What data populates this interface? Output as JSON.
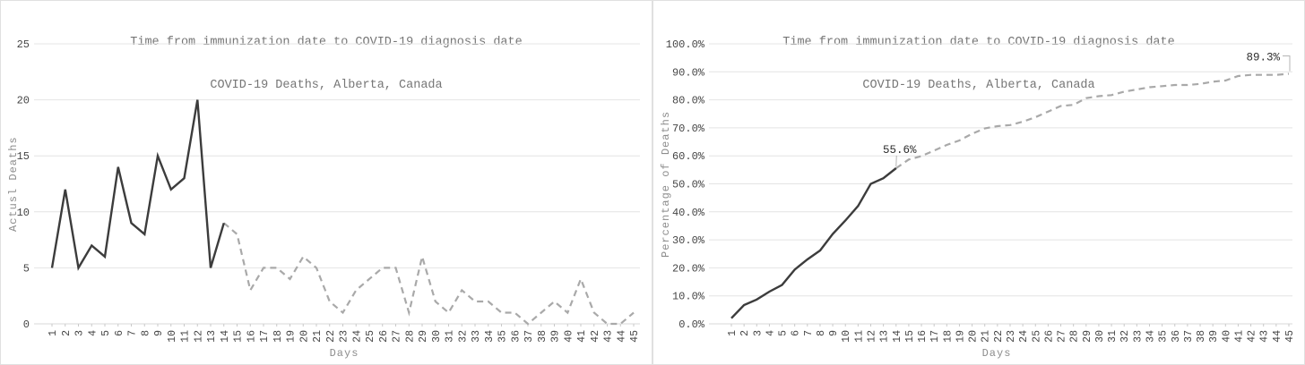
{
  "page": {
    "background": "#ffffff",
    "panel_border": "#e0e0e0"
  },
  "colors": {
    "grid": "#e4e4e4",
    "axis": "#d9d9d9",
    "tick_mark": "#c9c9c9",
    "tick_label": "#454545",
    "title": "#767676",
    "axis_label": "#8c8c8c",
    "solid_line": "#3c3c3c",
    "dashed_line": "#a9a9a9",
    "annotation_text": "#2e2e2e",
    "annotation_leader": "#b5b5b5"
  },
  "chart_data": [
    {
      "type": "line",
      "title_line1": "Time from immunization date to COVID-19 diagnosis date",
      "title_line2": "COVID-19 Deaths, Alberta, Canada",
      "xlabel": "Days",
      "ylabel": "Actusl Deaths",
      "x": [
        1,
        2,
        3,
        4,
        5,
        6,
        7,
        8,
        9,
        10,
        11,
        12,
        13,
        14,
        15,
        16,
        17,
        18,
        19,
        20,
        21,
        22,
        23,
        24,
        25,
        26,
        27,
        28,
        29,
        30,
        31,
        32,
        33,
        34,
        35,
        36,
        37,
        38,
        39,
        40,
        41,
        42,
        43,
        44,
        45
      ],
      "values": [
        5,
        12,
        5,
        7,
        6,
        14,
        9,
        8,
        15,
        12,
        13,
        20,
        5,
        9,
        8,
        3,
        5,
        5,
        4,
        6,
        5,
        2,
        1,
        3,
        4,
        5,
        5,
        1,
        6,
        2,
        1,
        3,
        2,
        2,
        1,
        1,
        0,
        1,
        2,
        1,
        4,
        1,
        0,
        0,
        1
      ],
      "ylim": [
        0,
        25
      ],
      "yticks": [
        0,
        5,
        10,
        15,
        20,
        25
      ],
      "ytick_labels": [
        "0",
        "5",
        "10",
        "15",
        "20",
        "25"
      ],
      "solid_through_day": 14,
      "grid": true,
      "legend": "none",
      "annotations": []
    },
    {
      "type": "line",
      "title_line1": "Time from immunization date to COVID-19 diagnosis date",
      "title_line2": "COVID-19 Deaths, Alberta, Canada",
      "xlabel": "Days",
      "ylabel": "Percentage of Deaths",
      "x": [
        1,
        2,
        3,
        4,
        5,
        6,
        7,
        8,
        9,
        10,
        11,
        12,
        13,
        14,
        15,
        16,
        17,
        18,
        19,
        20,
        21,
        22,
        23,
        24,
        25,
        26,
        27,
        28,
        29,
        30,
        31,
        32,
        33,
        34,
        35,
        36,
        37,
        38,
        39,
        40,
        41,
        42,
        43,
        44,
        45
      ],
      "values": [
        2.0,
        6.7,
        8.7,
        11.5,
        13.9,
        19.4,
        23.0,
        26.2,
        32.1,
        36.9,
        42.1,
        50.0,
        52.0,
        55.6,
        58.7,
        59.9,
        61.9,
        63.9,
        65.5,
        67.9,
        69.8,
        70.6,
        71.0,
        72.2,
        73.8,
        75.8,
        77.8,
        78.2,
        80.6,
        81.3,
        81.7,
        82.9,
        83.7,
        84.5,
        84.9,
        85.3,
        85.3,
        85.7,
        86.5,
        86.9,
        88.5,
        88.9,
        88.9,
        88.9,
        89.3
      ],
      "ylim": [
        0,
        100
      ],
      "yticks": [
        0,
        10,
        20,
        30,
        40,
        50,
        60,
        70,
        80,
        90,
        100
      ],
      "ytick_labels": [
        "0.0%",
        "10.0%",
        "20.0%",
        "30.0%",
        "40.0%",
        "50.0%",
        "60.0%",
        "70.0%",
        "80.0%",
        "90.0%",
        "100.0%"
      ],
      "solid_through_day": 14,
      "grid": true,
      "legend": "none",
      "annotations": [
        {
          "label": "55.6%",
          "day": 14,
          "value": 55.6,
          "placement": "above"
        },
        {
          "label": "89.3%",
          "day": 45,
          "value": 89.3,
          "placement": "elbow"
        }
      ]
    }
  ]
}
